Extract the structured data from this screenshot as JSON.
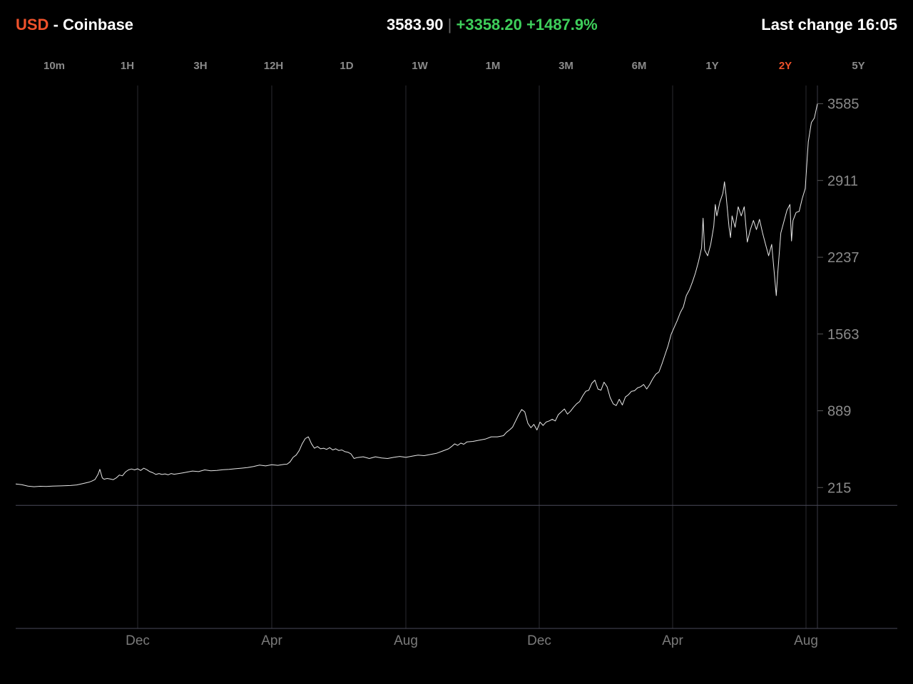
{
  "header": {
    "currency": "USD",
    "exchange": "- Coinbase",
    "price": "3583.90",
    "separator": "|",
    "change_abs": "+3358.20",
    "change_pct": "+1487.9%",
    "last_change": "Last change 16:05"
  },
  "ranges": [
    "10m",
    "1H",
    "3H",
    "12H",
    "1D",
    "1W",
    "1M",
    "3M",
    "6M",
    "1Y",
    "2Y",
    "5Y"
  ],
  "active_range": "2Y",
  "colors": {
    "accent": "#f0522b",
    "positive": "#3ecf5b",
    "line": "#e8e8e8",
    "grid": "#2e2e36"
  },
  "chart_data": {
    "type": "line",
    "title": "",
    "xlabel": "",
    "ylabel": "",
    "y_ticks": [
      215,
      889,
      1563,
      2237,
      2911,
      3585
    ],
    "x_ticks": [
      "Dec",
      "Apr",
      "Aug",
      "Dec",
      "Apr",
      "Aug"
    ],
    "baseline": 58.65,
    "ylim": [
      -1022,
      3745
    ],
    "series": [
      {
        "values": [
          [
            0,
            247
          ],
          [
            2,
            240
          ],
          [
            4,
            228
          ],
          [
            6,
            222
          ],
          [
            8,
            226
          ],
          [
            10,
            224
          ],
          [
            12,
            228
          ],
          [
            15,
            230
          ],
          [
            18,
            233
          ],
          [
            20,
            238
          ],
          [
            22,
            250
          ],
          [
            24,
            262
          ],
          [
            25,
            272
          ],
          [
            26,
            285
          ],
          [
            27,
            330
          ],
          [
            27.6,
            375
          ],
          [
            28.4,
            300
          ],
          [
            29,
            288
          ],
          [
            30,
            295
          ],
          [
            31,
            290
          ],
          [
            32,
            284
          ],
          [
            33,
            300
          ],
          [
            34,
            325
          ],
          [
            35,
            318
          ],
          [
            36,
            352
          ],
          [
            37,
            370
          ],
          [
            38,
            378
          ],
          [
            39,
            370
          ],
          [
            40,
            380
          ],
          [
            41,
            365
          ],
          [
            42,
            385
          ],
          [
            43,
            372
          ],
          [
            44,
            355
          ],
          [
            45,
            345
          ],
          [
            46,
            330
          ],
          [
            47,
            338
          ],
          [
            48,
            330
          ],
          [
            49,
            335
          ],
          [
            50,
            327
          ],
          [
            51,
            338
          ],
          [
            52,
            332
          ],
          [
            54,
            340
          ],
          [
            56,
            350
          ],
          [
            58,
            360
          ],
          [
            60,
            355
          ],
          [
            62,
            370
          ],
          [
            64,
            362
          ],
          [
            66,
            365
          ],
          [
            68,
            372
          ],
          [
            70,
            375
          ],
          [
            72,
            380
          ],
          [
            74,
            385
          ],
          [
            76,
            390
          ],
          [
            78,
            400
          ],
          [
            80,
            412
          ],
          [
            82,
            405
          ],
          [
            84,
            415
          ],
          [
            86,
            410
          ],
          [
            88,
            418
          ],
          [
            89,
            420
          ],
          [
            90,
            440
          ],
          [
            91,
            480
          ],
          [
            92,
            500
          ],
          [
            93,
            540
          ],
          [
            94,
            600
          ],
          [
            95,
            645
          ],
          [
            96,
            660
          ],
          [
            97,
            600
          ],
          [
            98,
            560
          ],
          [
            99,
            575
          ],
          [
            100,
            555
          ],
          [
            101,
            560
          ],
          [
            102,
            550
          ],
          [
            103,
            565
          ],
          [
            104,
            545
          ],
          [
            105,
            555
          ],
          [
            106,
            540
          ],
          [
            107,
            545
          ],
          [
            108,
            530
          ],
          [
            109,
            525
          ],
          [
            110,
            510
          ],
          [
            111,
            470
          ],
          [
            112,
            478
          ],
          [
            114,
            485
          ],
          [
            116,
            470
          ],
          [
            118,
            485
          ],
          [
            120,
            475
          ],
          [
            122,
            470
          ],
          [
            124,
            480
          ],
          [
            126,
            488
          ],
          [
            128,
            480
          ],
          [
            130,
            490
          ],
          [
            132,
            500
          ],
          [
            134,
            495
          ],
          [
            136,
            505
          ],
          [
            138,
            515
          ],
          [
            140,
            535
          ],
          [
            142,
            555
          ],
          [
            143,
            575
          ],
          [
            144,
            598
          ],
          [
            145,
            585
          ],
          [
            146,
            605
          ],
          [
            147,
            595
          ],
          [
            148,
            615
          ],
          [
            150,
            620
          ],
          [
            152,
            630
          ],
          [
            154,
            640
          ],
          [
            156,
            660
          ],
          [
            158,
            660
          ],
          [
            160,
            670
          ],
          [
            161,
            700
          ],
          [
            162,
            720
          ],
          [
            163,
            745
          ],
          [
            164,
            800
          ],
          [
            165,
            855
          ],
          [
            166,
            900
          ],
          [
            167,
            880
          ],
          [
            168,
            780
          ],
          [
            169,
            740
          ],
          [
            170,
            770
          ],
          [
            171,
            720
          ],
          [
            172,
            790
          ],
          [
            173,
            760
          ],
          [
            174,
            790
          ],
          [
            175,
            800
          ],
          [
            176,
            815
          ],
          [
            177,
            800
          ],
          [
            178,
            855
          ],
          [
            179,
            880
          ],
          [
            180,
            905
          ],
          [
            181,
            860
          ],
          [
            182,
            885
          ],
          [
            183,
            920
          ],
          [
            184,
            950
          ],
          [
            185,
            970
          ],
          [
            186,
            1020
          ],
          [
            187,
            1060
          ],
          [
            188,
            1070
          ],
          [
            189,
            1130
          ],
          [
            190,
            1158
          ],
          [
            191,
            1080
          ],
          [
            192,
            1070
          ],
          [
            193,
            1140
          ],
          [
            194,
            1100
          ],
          [
            195,
            1005
          ],
          [
            196,
            950
          ],
          [
            197,
            935
          ],
          [
            198,
            990
          ],
          [
            199,
            940
          ],
          [
            200,
            1010
          ],
          [
            201,
            1030
          ],
          [
            202,
            1060
          ],
          [
            203,
            1065
          ],
          [
            204,
            1090
          ],
          [
            205,
            1100
          ],
          [
            206,
            1120
          ],
          [
            207,
            1080
          ],
          [
            208,
            1120
          ],
          [
            209,
            1170
          ],
          [
            210,
            1210
          ],
          [
            211,
            1230
          ],
          [
            212,
            1300
          ],
          [
            213,
            1380
          ],
          [
            214,
            1460
          ],
          [
            215,
            1560
          ],
          [
            216,
            1620
          ],
          [
            217,
            1680
          ],
          [
            218,
            1750
          ],
          [
            219,
            1800
          ],
          [
            220,
            1900
          ],
          [
            221,
            1950
          ],
          [
            222,
            2020
          ],
          [
            223,
            2100
          ],
          [
            224,
            2200
          ],
          [
            225,
            2320
          ],
          [
            225.5,
            2580
          ],
          [
            226,
            2300
          ],
          [
            227,
            2250
          ],
          [
            228,
            2350
          ],
          [
            229,
            2510
          ],
          [
            229.5,
            2700
          ],
          [
            230,
            2600
          ],
          [
            231,
            2720
          ],
          [
            232,
            2800
          ],
          [
            232.5,
            2900
          ],
          [
            233,
            2790
          ],
          [
            234,
            2500
          ],
          [
            234.5,
            2410
          ],
          [
            235,
            2600
          ],
          [
            236,
            2500
          ],
          [
            237,
            2680
          ],
          [
            238,
            2600
          ],
          [
            239,
            2680
          ],
          [
            240,
            2370
          ],
          [
            241,
            2480
          ],
          [
            242,
            2560
          ],
          [
            243,
            2480
          ],
          [
            244,
            2570
          ],
          [
            245,
            2450
          ],
          [
            246,
            2350
          ],
          [
            247,
            2250
          ],
          [
            248,
            2350
          ],
          [
            249,
            2050
          ],
          [
            249.5,
            1900
          ],
          [
            250,
            2100
          ],
          [
            251,
            2450
          ],
          [
            252,
            2550
          ],
          [
            253,
            2650
          ],
          [
            254,
            2700
          ],
          [
            254.5,
            2380
          ],
          [
            255,
            2560
          ],
          [
            256,
            2630
          ],
          [
            257,
            2640
          ],
          [
            258,
            2750
          ],
          [
            259,
            2840
          ],
          [
            260,
            3250
          ],
          [
            261,
            3420
          ],
          [
            262,
            3460
          ],
          [
            263,
            3585
          ]
        ]
      }
    ]
  }
}
